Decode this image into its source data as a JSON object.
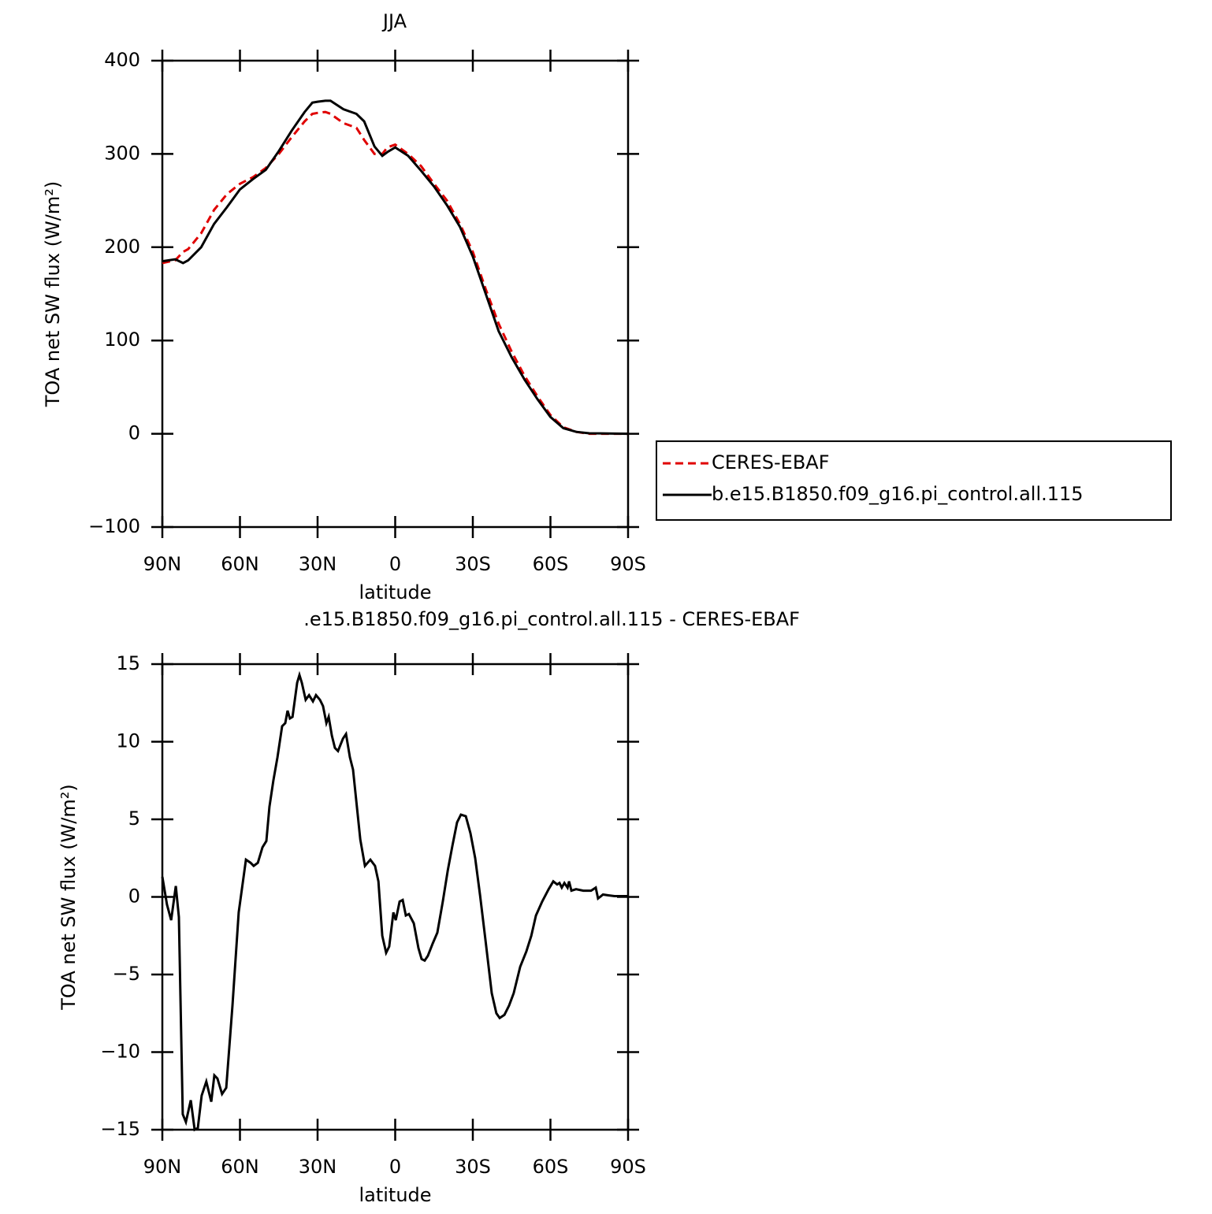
{
  "chart_data": [
    {
      "type": "line",
      "title": "JJA",
      "xlabel": "latitude",
      "ylabel": "TOA net SW flux (W/m²)",
      "x": [
        90,
        85,
        82,
        80,
        75,
        70,
        65,
        60,
        55,
        50,
        45,
        40,
        35,
        32,
        30,
        27,
        25,
        20,
        15,
        12,
        8,
        5,
        3,
        0,
        -5,
        -10,
        -15,
        -20,
        -25,
        -30,
        -35,
        -40,
        -45,
        -50,
        -55,
        -60,
        -65,
        -70,
        -75,
        -90
      ],
      "series": [
        {
          "name": "CERES-EBAF",
          "color": "#e00000",
          "dashed": true,
          "values": [
            183,
            186,
            195,
            198,
            215,
            240,
            257,
            268,
            275,
            285,
            300,
            318,
            335,
            343,
            344,
            345,
            343,
            333,
            328,
            315,
            300,
            300,
            307,
            310,
            300,
            287,
            268,
            250,
            225,
            195,
            155,
            118,
            88,
            62,
            40,
            20,
            7,
            2,
            0,
            0
          ]
        },
        {
          "name": "b.e15.B1850.f09_g16.pi_control.all.115",
          "color": "#000000",
          "dashed": false,
          "values": [
            185,
            187,
            183,
            186,
            200,
            225,
            243,
            262,
            273,
            283,
            303,
            325,
            345,
            355,
            356,
            357,
            357,
            348,
            343,
            335,
            308,
            298,
            302,
            307,
            298,
            282,
            265,
            245,
            222,
            190,
            150,
            110,
            82,
            58,
            37,
            18,
            6,
            2,
            0.5,
            0
          ]
        }
      ],
      "xlim": [
        90,
        -90
      ],
      "xticks": [
        {
          "value": 90,
          "label": "90N"
        },
        {
          "value": 60,
          "label": "60N"
        },
        {
          "value": 30,
          "label": "30N"
        },
        0,
        {
          "value": -30,
          "label": "30S"
        },
        {
          "value": -60,
          "label": "60S"
        },
        {
          "value": -90,
          "label": "90S"
        }
      ],
      "ylim": [
        -100,
        400
      ],
      "yticks": [
        {
          "value": -100,
          "label": "−100"
        },
        0,
        100,
        200,
        300,
        400
      ],
      "legend": "right"
    },
    {
      "type": "line",
      "title": ".e15.B1850.f09_g16.pi_control.all.115 - CERES-EBAF",
      "xlabel": "latitude",
      "ylabel": "TOA net SW flux (W/m²)",
      "x": [
        90,
        88.2,
        86.6,
        84.8,
        83.6,
        82.1,
        80.9,
        79,
        77.5,
        76.3,
        74.8,
        73,
        71.1,
        69.9,
        68.7,
        66.9,
        65.3,
        62.9,
        60.5,
        57.7,
        55.9,
        54.7,
        53.1,
        51.3,
        49.8,
        48.6,
        47.1,
        45.5,
        43.7,
        42.5,
        41.6,
        40.7,
        39.7,
        37.9,
        37,
        36.1,
        34.6,
        33.3,
        31.8,
        30.6,
        29.1,
        27.9,
        26.6,
        25.7,
        24.5,
        23.3,
        22.1,
        20.2,
        19,
        17.5,
        16.3,
        14.8,
        13.5,
        11.7,
        9.6,
        7.8,
        6.5,
        5,
        3.5,
        2.3,
        0.7,
        -0.2,
        -1.7,
        -2.9,
        -4.1,
        -5.3,
        -7.2,
        -9,
        -10.2,
        -11.4,
        -12.6,
        -14.5,
        -16.3,
        -18.4,
        -20.3,
        -22.1,
        -23.9,
        -25.4,
        -27.3,
        -29.1,
        -30.9,
        -32.8,
        -34.9,
        -37.3,
        -39.1,
        -40.4,
        -42.2,
        -44,
        -45.8,
        -48.3,
        -50.7,
        -52.6,
        -54.4,
        -56.8,
        -59.3,
        -61.1,
        -62.6,
        -63.5,
        -64.4,
        -65.4,
        -66.6,
        -67.2,
        -68.1,
        -69.9,
        -72.7,
        -75.7,
        -77.5,
        -78.4,
        -80.3,
        -82.4,
        -84.8,
        -90
      ],
      "series": [
        {
          "color": "#000000",
          "dashed": false,
          "values": [
            1.3,
            -0.5,
            -1.5,
            0.7,
            -1.3,
            -14,
            -14.5,
            -13.1,
            -15,
            -14.9,
            -12.8,
            -11.9,
            -13.2,
            -11.5,
            -11.7,
            -12.7,
            -12.3,
            -7,
            -1,
            2.4,
            2.2,
            2,
            2.2,
            3.2,
            3.6,
            5.8,
            7.5,
            9,
            11,
            11.2,
            12,
            11.5,
            11.6,
            13.8,
            14.3,
            13.8,
            12.7,
            13,
            12.6,
            13,
            12.7,
            12.3,
            11.2,
            11.6,
            10.4,
            9.6,
            9.4,
            10.2,
            10.5,
            9,
            8.2,
            5.8,
            3.7,
            2,
            2.4,
            2,
            1,
            -2.5,
            -3.6,
            -3.2,
            -1,
            -1.5,
            -0.3,
            -0.2,
            -1.2,
            -1.1,
            -1.7,
            -3.3,
            -4,
            -4.1,
            -3.8,
            -3,
            -2.3,
            -0.3,
            1.7,
            3.3,
            4.8,
            5.3,
            5.2,
            4.1,
            2.5,
            0.1,
            -2.8,
            -6.2,
            -7.5,
            -7.8,
            -7.6,
            -7,
            -6.2,
            -4.5,
            -3.5,
            -2.5,
            -1.2,
            -0.3,
            0.5,
            1,
            0.8,
            0.9,
            0.6,
            0.9,
            0.6,
            1,
            0.4,
            0.5,
            0.4,
            0.4,
            0.6,
            -0.1,
            0.15,
            0.1,
            0.05,
            0.05
          ]
        }
      ],
      "xlim": [
        90,
        -90
      ],
      "xticks": [
        {
          "value": 90,
          "label": "90N"
        },
        {
          "value": 60,
          "label": "60N"
        },
        {
          "value": 30,
          "label": "30N"
        },
        0,
        {
          "value": -30,
          "label": "30S"
        },
        {
          "value": -60,
          "label": "60S"
        },
        {
          "value": -90,
          "label": "90S"
        }
      ],
      "ylim": [
        -15,
        15
      ],
      "yticks": [
        {
          "value": -15,
          "label": "−15"
        },
        {
          "value": -10,
          "label": "−10"
        },
        {
          "value": -5,
          "label": "−5"
        },
        0,
        5,
        10,
        15
      ]
    }
  ]
}
